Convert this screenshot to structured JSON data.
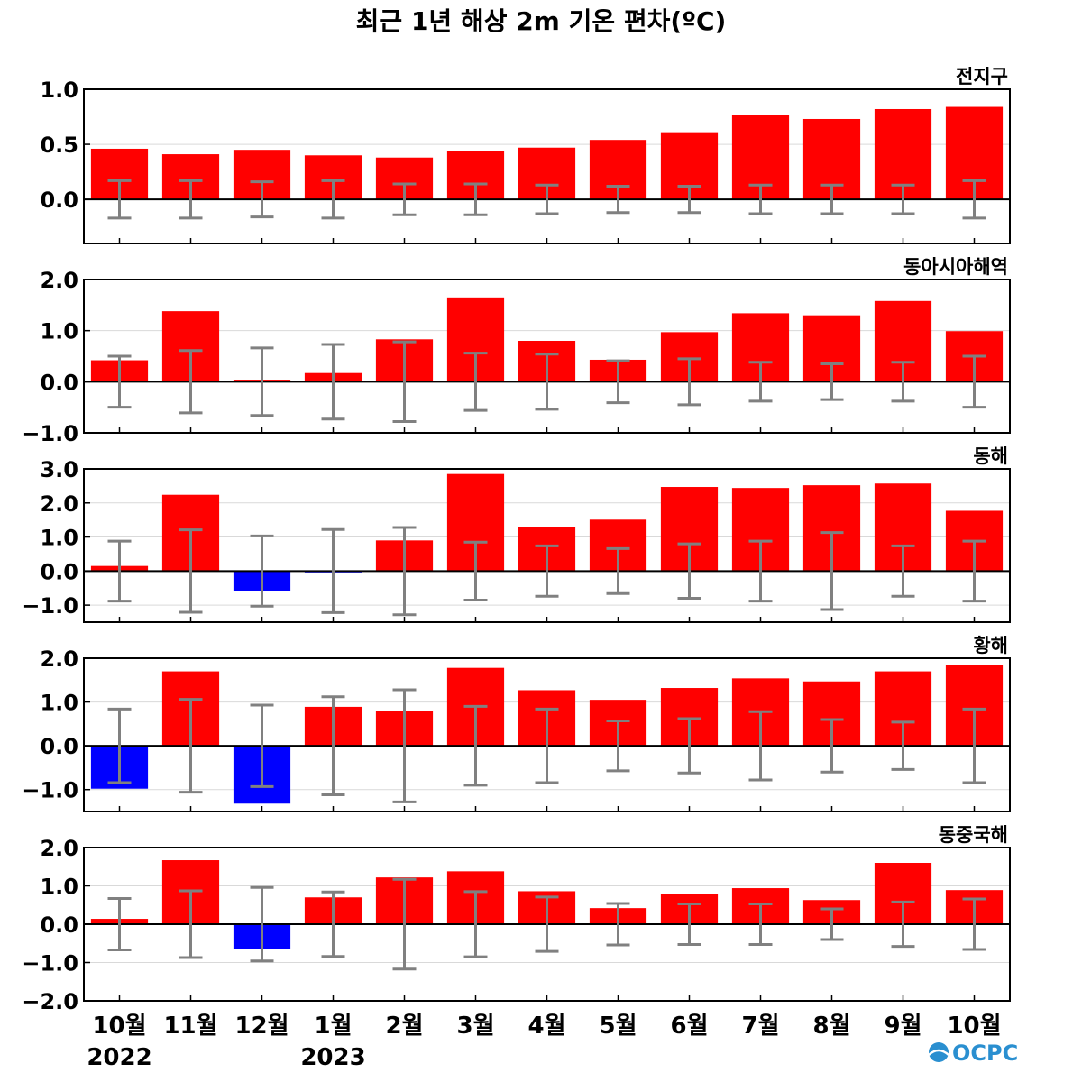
{
  "chart_data": {
    "type": "bar",
    "title": "최근 1년 해상 2m 기온 편차(ºC)",
    "categories": [
      "10월",
      "11월",
      "12월",
      "1월",
      "2월",
      "3월",
      "4월",
      "5월",
      "6월",
      "7월",
      "8월",
      "9월",
      "10월"
    ],
    "year_labels": [
      {
        "category_index": 0,
        "text": "2022"
      },
      {
        "category_index": 3,
        "text": "2023"
      }
    ],
    "colors": {
      "positive": "#ff0000",
      "negative": "#0000ff",
      "error_bar": "#808080"
    },
    "grid": true,
    "panels": [
      {
        "name": "전지구",
        "ylim": [
          -0.4,
          1.0
        ],
        "yticks": [
          "1.0",
          "0.5",
          "0.0"
        ],
        "ytick_values": [
          1.0,
          0.5,
          0.0
        ],
        "values": [
          0.46,
          0.41,
          0.45,
          0.4,
          0.38,
          0.44,
          0.47,
          0.54,
          0.61,
          0.77,
          0.73,
          0.82,
          0.84
        ],
        "error_range": [
          0.17,
          0.17,
          0.16,
          0.17,
          0.14,
          0.14,
          0.13,
          0.12,
          0.12,
          0.13,
          0.13,
          0.13,
          0.17
        ]
      },
      {
        "name": "동아시아해역",
        "ylim": [
          -1.0,
          2.0
        ],
        "yticks": [
          "2.0",
          "1.0",
          "0.0",
          "−1.0"
        ],
        "ytick_values": [
          2.0,
          1.0,
          0.0,
          -1.0
        ],
        "values": [
          0.42,
          1.38,
          0.04,
          0.17,
          0.83,
          1.65,
          0.8,
          0.43,
          0.97,
          1.34,
          1.3,
          1.58,
          0.99
        ],
        "error_range": [
          0.5,
          0.61,
          0.66,
          0.73,
          0.78,
          0.56,
          0.54,
          0.41,
          0.45,
          0.38,
          0.35,
          0.38,
          0.5
        ]
      },
      {
        "name": "동해",
        "ylim": [
          -1.5,
          3.0
        ],
        "yticks": [
          "3.0",
          "2.0",
          "1.0",
          "0.0",
          "−1.0"
        ],
        "ytick_values": [
          3.0,
          2.0,
          1.0,
          0.0,
          -1.0
        ],
        "values": [
          0.15,
          2.24,
          -0.6,
          -0.04,
          0.9,
          2.85,
          1.3,
          1.51,
          2.47,
          2.44,
          2.52,
          2.57,
          1.77
        ],
        "error_range": [
          0.88,
          1.21,
          1.03,
          1.22,
          1.28,
          0.85,
          0.74,
          0.66,
          0.8,
          0.88,
          1.13,
          0.74,
          0.88
        ]
      },
      {
        "name": "황해",
        "ylim": [
          -1.5,
          2.0
        ],
        "yticks": [
          "2.0",
          "1.0",
          "0.0",
          "−1.0"
        ],
        "ytick_values": [
          2.0,
          1.0,
          0.0,
          -1.0
        ],
        "values": [
          -0.98,
          1.7,
          -1.32,
          0.89,
          0.8,
          1.78,
          1.27,
          1.05,
          1.32,
          1.54,
          1.47,
          1.7,
          1.85
        ],
        "error_range": [
          0.84,
          1.06,
          0.93,
          1.12,
          1.28,
          0.9,
          0.84,
          0.57,
          0.62,
          0.78,
          0.6,
          0.54,
          0.84
        ]
      },
      {
        "name": "동중국해",
        "ylim": [
          -2.0,
          2.0
        ],
        "yticks": [
          "2.0",
          "1.0",
          "0.0",
          "−1.0",
          "−2.0"
        ],
        "ytick_values": [
          2.0,
          1.0,
          0.0,
          -1.0,
          -2.0
        ],
        "values": [
          0.14,
          1.67,
          -0.65,
          0.7,
          1.22,
          1.38,
          0.86,
          0.42,
          0.78,
          0.94,
          0.63,
          1.6,
          0.89
        ],
        "error_range": [
          0.67,
          0.87,
          0.96,
          0.84,
          1.17,
          0.85,
          0.71,
          0.54,
          0.53,
          0.53,
          0.4,
          0.58,
          0.66
        ]
      }
    ]
  },
  "logo": {
    "text": "OCPC"
  }
}
